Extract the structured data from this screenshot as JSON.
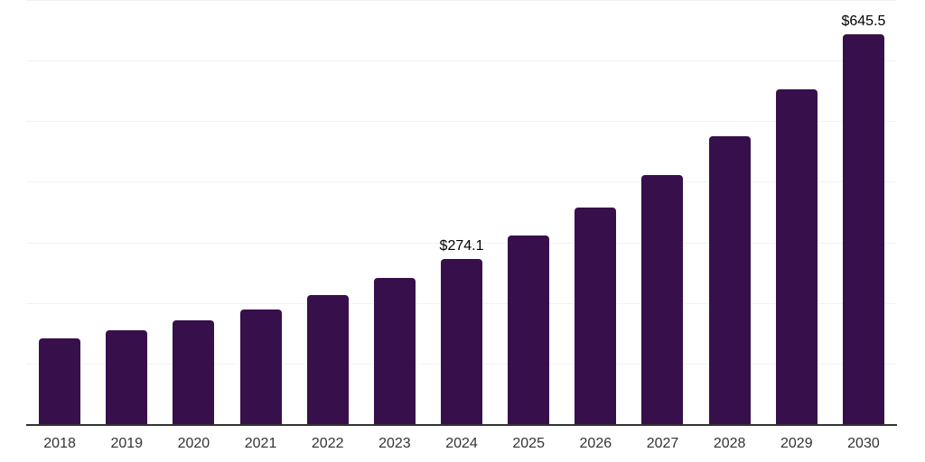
{
  "chart_data": {
    "type": "bar",
    "title": "",
    "xlabel": "",
    "ylabel": "",
    "categories": [
      "2018",
      "2019",
      "2020",
      "2021",
      "2022",
      "2023",
      "2024",
      "2025",
      "2026",
      "2027",
      "2028",
      "2029",
      "2030"
    ],
    "values": [
      143,
      156,
      173,
      191,
      215,
      243,
      274.1,
      313,
      359,
      413,
      477,
      554,
      645.5
    ],
    "data_labels": [
      "",
      "",
      "",
      "",
      "",
      "",
      "$274.1",
      "",
      "",
      "",
      "",
      "",
      "$645.5"
    ],
    "ylim": [
      0,
      700
    ],
    "grid": {
      "visible": true,
      "interval": 100
    },
    "legend_position": "none"
  },
  "colors": {
    "bar": "#37104B",
    "gridline": "#f2f2f2",
    "axis_line": "#333333",
    "tick_label": "#333333",
    "data_label": "#000000",
    "background": "#ffffff"
  }
}
